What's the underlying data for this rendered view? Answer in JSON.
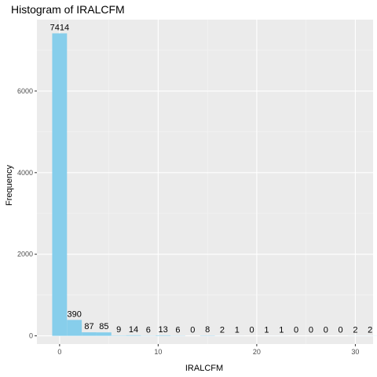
{
  "chart_data": {
    "type": "bar",
    "title": "Histogram of IRALCFM",
    "xlabel": "IRALCFM",
    "ylabel": "Frequency",
    "bin_width": 1.5,
    "bin_start": -0.75,
    "x_ticks": [
      0,
      10,
      20,
      30
    ],
    "y_ticks": [
      0,
      2000,
      4000,
      6000
    ],
    "xlim": [
      -2.3,
      31.8
    ],
    "ylim": [
      -200,
      7750
    ],
    "counts": [
      7414,
      390,
      87,
      85,
      9,
      14,
      6,
      13,
      6,
      0,
      8,
      2,
      1,
      0,
      1,
      1,
      0,
      0,
      0,
      0,
      2,
      2
    ],
    "colors": {
      "bar": "#87ceeb",
      "panel": "#ebebeb",
      "grid_major": "#ffffff",
      "grid_minor": "#f5f5f5"
    }
  }
}
